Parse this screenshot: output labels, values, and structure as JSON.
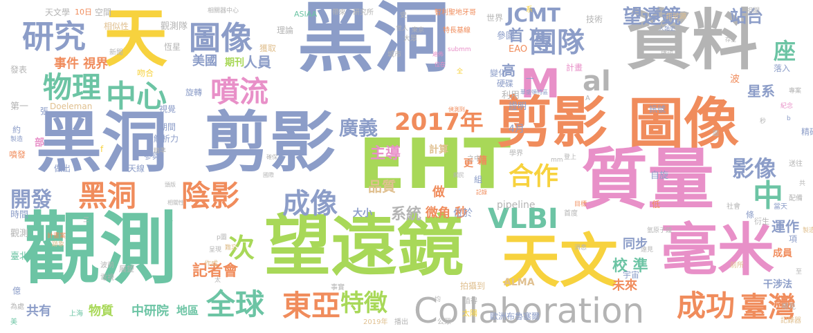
{
  "palette": {
    "blue": "#8c9dc8",
    "orange": "#f08c5c",
    "green": "#6cc4a4",
    "yellow": "#f7d23e",
    "lime": "#a8d858",
    "pink": "#e890c8",
    "gray": "#b4b4b4",
    "tan": "#e0c090"
  },
  "words": [
    "黑洞",
    "資料",
    "EHT",
    "觀測",
    "望遠鏡",
    "黑洞",
    "剪影",
    "剪影",
    "圖像",
    "質量",
    "毫米",
    "天文",
    "天",
    "圖像",
    "研究",
    "團隊",
    "物理",
    "中心",
    "噴流",
    "M",
    "al",
    "座",
    "2017年",
    "廣義",
    "黑洞",
    "陰影",
    "合作",
    "中",
    "影像",
    "VLBI",
    "成像",
    "東亞",
    "全球",
    "特徵",
    "Collaboration",
    "成功",
    "臺灣",
    "次",
    "開發",
    "JCMT",
    "首 次",
    "望遠鏡",
    "站台",
    "星系",
    "事件 視界",
    "美國",
    "期刊",
    "人員",
    "主導",
    "品質",
    "計算",
    "系統",
    "微角 秒",
    "大小",
    "校 準",
    "同步",
    "運作",
    "記者會",
    "未來",
    "物質",
    "中研院",
    "地區",
    "共有",
    "pipeline",
    "ALMA",
    "干涉法",
    "天文學",
    "空間",
    "觀測隊",
    "相似性",
    "理論",
    "獲取",
    "恆星",
    "發表",
    "新聞",
    "4月",
    "證明",
    "利用",
    "高",
    "硬碟",
    "參圖",
    "EAO",
    "世界",
    "技術",
    "計畫",
    "訊號",
    "自旋",
    "Doeleman",
    "做出",
    "噴發",
    "天線",
    "參與",
    "解析力",
    "期間",
    "旋轉",
    "視覺",
    "吻合",
    "歐洲布魯塞爾",
    "變化",
    "拍攝到",
    "宇宙",
    "成員",
    "項",
    "億",
    "時間",
    "臺北",
    "觀測",
    "第一",
    "約",
    "落入",
    "波",
    "相關",
    "做",
    "更",
    "藉",
    "組",
    "位於",
    "低",
    "條",
    "當天",
    "衍生",
    "太陽",
    "公眾",
    "值得",
    "事實",
    "作成",
    "展望",
    "波前",
    "電視",
    "上海",
    "2019年",
    "播出",
    "新",
    "首度",
    "社會",
    "配備",
    "送往",
    "記錄器",
    "眼見",
    "前所",
    "城市",
    "研究所",
    "智利聖地牙哥",
    "帶來",
    "ASIAA",
    "相關器中心",
    "10日",
    "特長基線",
    "大眾",
    "東京",
    "世人",
    "史",
    "人類史",
    "存至",
    "submm",
    "遍佈",
    "位在",
    "華盛頓特區",
    "全",
    "A",
    "偵測到",
    "記錄",
    "網民",
    "確保",
    "頭版",
    "國際",
    "相關性",
    "計畫案",
    "確認",
    "跡象",
    "難忘",
    "呈現",
    "p圖",
    "學界",
    "之中",
    "目標",
    "mm",
    "登上",
    "消息",
    "遠見",
    "氫原子鐘",
    "精準",
    "精確度",
    "b",
    "秒",
    "紀念",
    "製造",
    "專案",
    "製造工",
    "共",
    "張",
    "一",
    "部",
    "f",
    "太",
    "均",
    "美",
    "為處",
    "訊號源",
    "系",
    "圖",
    "三",
    "至",
    "更新",
    "結果",
    "範圍"
  ]
}
